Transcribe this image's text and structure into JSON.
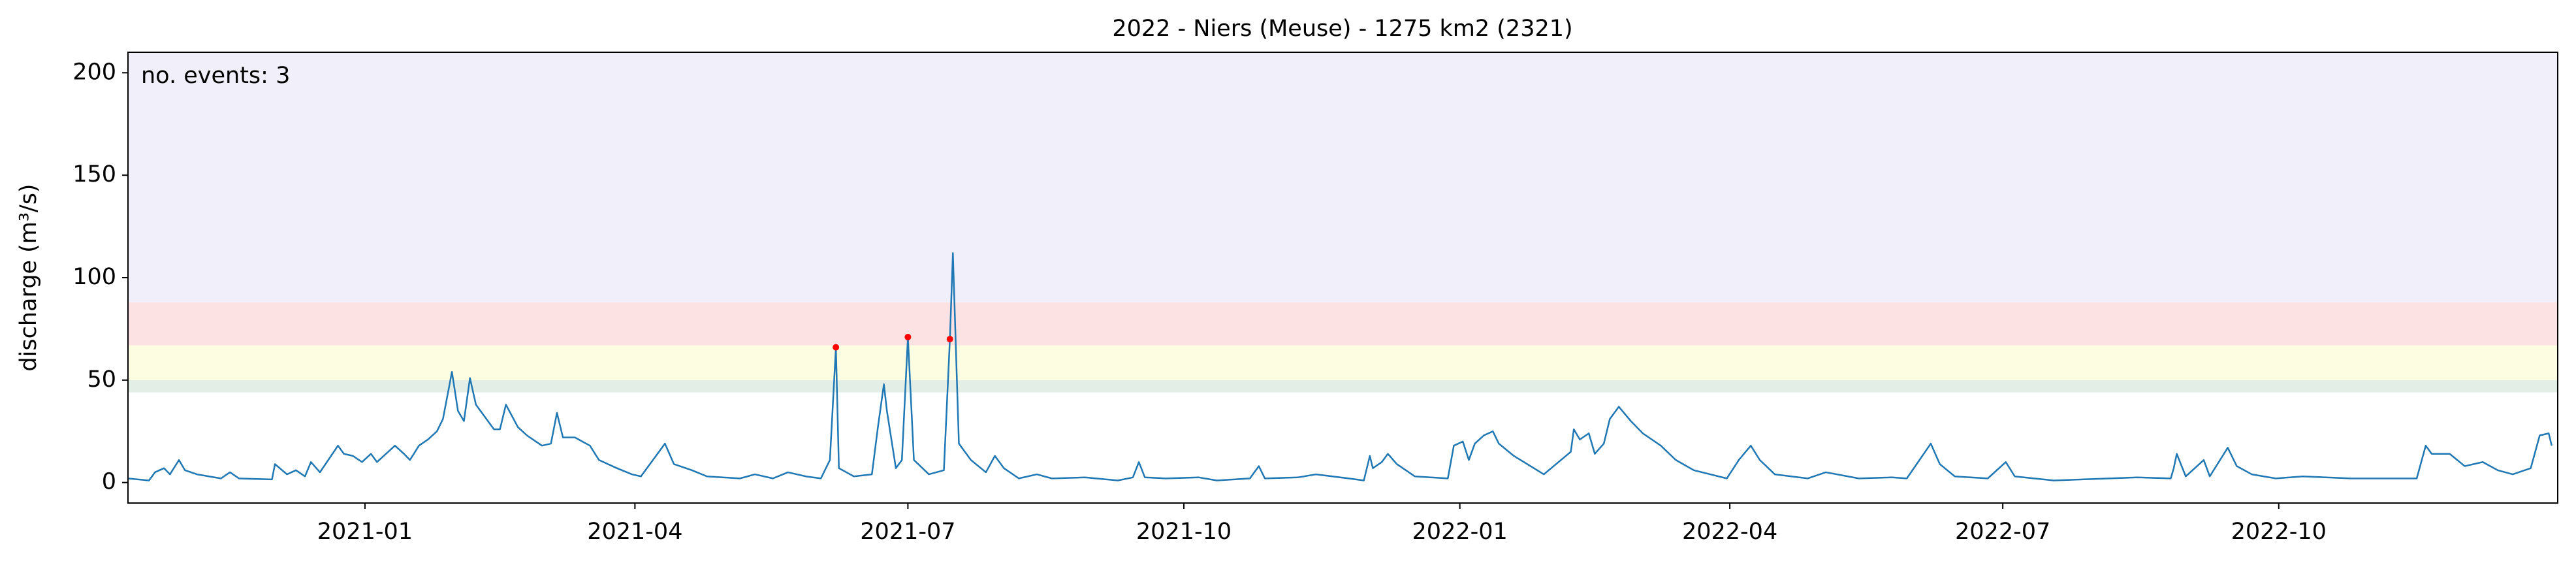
{
  "chart_data": {
    "type": "line",
    "title": "2022 - Niers (Meuse) - 1275 km2 (2321)",
    "ylabel": "discharge (m³/s)",
    "annotation": "no. events: 3",
    "annotation_color": "#ff0000",
    "xlim": [
      "2020-10-14",
      "2023-01-02"
    ],
    "xticks": [
      "2021-01",
      "2021-04",
      "2021-07",
      "2021-10",
      "2022-01",
      "2022-04",
      "2022-07",
      "2022-10"
    ],
    "ylim": [
      -10,
      210
    ],
    "yticks": [
      0,
      50,
      100,
      150,
      200
    ],
    "bands": [
      {
        "range": [
          44,
          50
        ],
        "color": "#e3eee6"
      },
      {
        "range": [
          50,
          67
        ],
        "color": "#fdfde2"
      },
      {
        "range": [
          67,
          88
        ],
        "color": "#fde2e4"
      },
      {
        "range": [
          88,
          210
        ],
        "color": "#f1eff9"
      }
    ],
    "x": [
      "2020-10-14",
      "2020-10-21",
      "2020-10-23",
      "2020-10-26",
      "2020-10-28",
      "2020-10-31",
      "2020-11-02",
      "2020-11-06",
      "2020-11-14",
      "2020-11-17",
      "2020-11-20",
      "2020-12-01",
      "2020-12-02",
      "2020-12-06",
      "2020-12-09",
      "2020-12-12",
      "2020-12-14",
      "2020-12-17",
      "2020-12-23",
      "2020-12-25",
      "2020-12-28",
      "2020-12-31",
      "2021-01-03",
      "2021-01-05",
      "2021-01-11",
      "2021-01-14",
      "2021-01-16",
      "2021-01-19",
      "2021-01-22",
      "2021-01-25",
      "2021-01-27",
      "2021-01-30",
      "2021-02-01",
      "2021-02-03",
      "2021-02-05",
      "2021-02-07",
      "2021-02-09",
      "2021-02-13",
      "2021-02-15",
      "2021-02-17",
      "2021-02-21",
      "2021-02-24",
      "2021-03-01",
      "2021-03-04",
      "2021-03-06",
      "2021-03-08",
      "2021-03-12",
      "2021-03-17",
      "2021-03-20",
      "2021-03-26",
      "2021-03-31",
      "2021-04-03",
      "2021-04-11",
      "2021-04-14",
      "2021-04-20",
      "2021-04-25",
      "2021-05-06",
      "2021-05-11",
      "2021-05-17",
      "2021-05-22",
      "2021-05-28",
      "2021-06-02",
      "2021-06-05",
      "2021-06-07",
      "2021-06-08",
      "2021-06-13",
      "2021-06-19",
      "2021-06-21",
      "2021-06-23",
      "2021-06-24",
      "2021-06-27",
      "2021-06-29",
      "2021-07-01",
      "2021-07-03",
      "2021-07-08",
      "2021-07-13",
      "2021-07-15",
      "2021-07-16",
      "2021-07-18",
      "2021-07-22",
      "2021-07-27",
      "2021-07-30",
      "2021-08-02",
      "2021-08-07",
      "2021-08-13",
      "2021-08-18",
      "2021-08-29",
      "2021-09-09",
      "2021-09-14",
      "2021-09-16",
      "2021-09-18",
      "2021-09-25",
      "2021-10-06",
      "2021-10-12",
      "2021-10-23",
      "2021-10-26",
      "2021-10-28",
      "2021-11-08",
      "2021-11-14",
      "2021-11-25",
      "2021-11-30",
      "2021-12-02",
      "2021-12-03",
      "2021-12-06",
      "2021-12-08",
      "2021-12-11",
      "2021-12-17",
      "2021-12-28",
      "2021-12-30",
      "2022-01-02",
      "2022-01-04",
      "2022-01-06",
      "2022-01-09",
      "2022-01-12",
      "2022-01-14",
      "2022-01-19",
      "2022-01-29",
      "2022-02-07",
      "2022-02-08",
      "2022-02-10",
      "2022-02-13",
      "2022-02-15",
      "2022-02-18",
      "2022-02-20",
      "2022-02-23",
      "2022-02-27",
      "2022-03-03",
      "2022-03-09",
      "2022-03-14",
      "2022-03-20",
      "2022-03-31",
      "2022-04-04",
      "2022-04-08",
      "2022-04-11",
      "2022-04-16",
      "2022-04-27",
      "2022-05-03",
      "2022-05-14",
      "2022-05-25",
      "2022-05-30",
      "2022-06-07",
      "2022-06-10",
      "2022-06-15",
      "2022-06-26",
      "2022-07-02",
      "2022-07-05",
      "2022-07-18",
      "2022-08-15",
      "2022-08-26",
      "2022-08-27",
      "2022-08-28",
      "2022-08-31",
      "2022-09-06",
      "2022-09-08",
      "2022-09-14",
      "2022-09-17",
      "2022-09-22",
      "2022-09-30",
      "2022-10-09",
      "2022-10-25",
      "2022-11-16",
      "2022-11-19",
      "2022-11-21",
      "2022-11-27",
      "2022-12-02",
      "2022-12-08",
      "2022-12-13",
      "2022-12-18",
      "2022-12-24",
      "2022-12-27",
      "2022-12-30",
      "2022-12-31"
    ],
    "series": [
      {
        "color": "#1f77b4",
        "values": [
          2,
          1,
          5,
          7,
          4,
          11,
          6,
          4,
          2,
          5,
          2,
          1.5,
          9,
          4,
          6,
          3,
          10,
          5,
          18,
          14,
          13,
          10,
          14,
          10,
          18,
          14,
          11,
          18,
          21,
          25,
          31,
          54,
          35,
          30,
          51,
          38,
          34,
          26,
          26,
          38,
          27,
          23,
          18,
          19,
          34,
          22,
          22,
          18,
          11,
          7,
          4,
          3,
          19,
          9,
          6,
          3,
          2,
          4,
          2,
          5,
          3,
          2,
          11,
          66,
          7,
          3,
          4,
          27,
          48,
          35,
          7,
          11,
          71,
          11,
          4,
          6,
          70,
          112,
          19,
          11,
          5,
          13,
          7,
          2,
          4,
          2,
          2.5,
          1,
          2.5,
          10,
          2.5,
          2,
          2.5,
          1,
          2,
          8,
          2,
          2.5,
          4,
          2,
          1,
          13,
          7,
          10,
          14,
          9,
          3,
          2,
          18,
          20,
          11,
          19,
          23,
          25,
          19,
          13,
          4,
          15,
          26,
          21,
          24,
          14,
          19,
          31,
          37,
          30,
          24,
          18,
          11,
          6,
          2,
          11,
          18,
          11,
          4,
          2,
          5,
          2,
          2.5,
          2,
          19,
          9,
          3,
          2,
          10,
          3,
          1,
          2.5,
          2,
          7,
          14,
          3,
          11,
          3,
          17,
          8,
          4,
          2,
          3,
          2,
          2,
          18,
          14,
          14,
          8,
          10,
          6,
          4,
          7,
          23,
          24,
          18
        ]
      }
    ],
    "events": {
      "x": [
        "2021-06-07",
        "2021-07-01",
        "2021-07-15"
      ],
      "values": [
        66,
        71,
        70
      ],
      "color": "#ff0000"
    }
  }
}
